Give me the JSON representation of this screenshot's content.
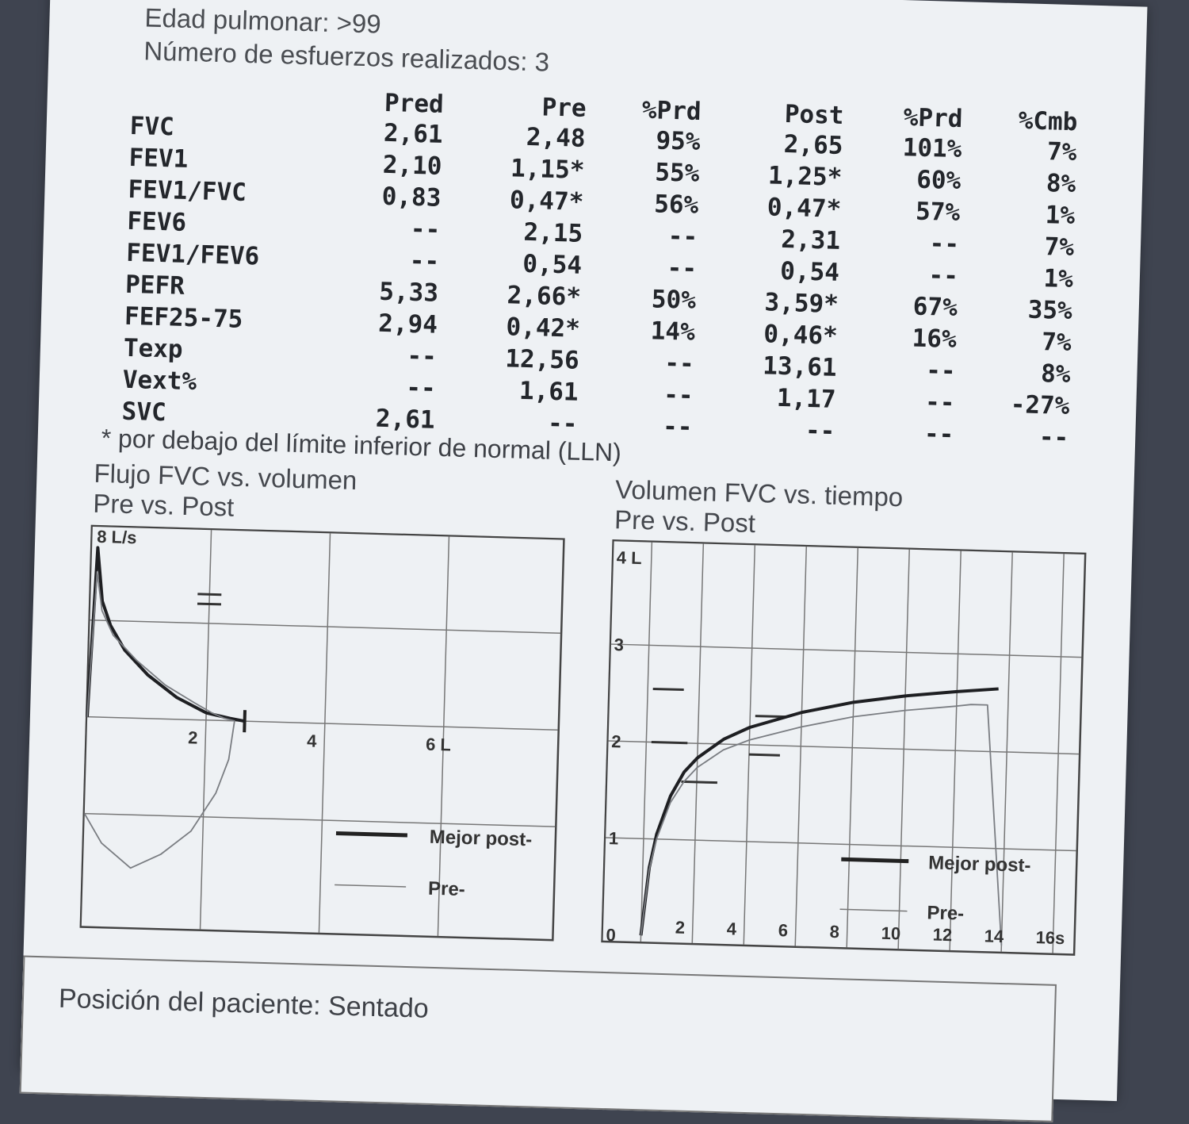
{
  "header": {
    "lung_age": "Edad pulmonar: >99",
    "efforts": "Número de esfuerzos realizados: 3"
  },
  "table": {
    "columns": [
      "Pred",
      "Pre",
      "%Prd",
      "Post",
      "%Prd",
      "%Cmb"
    ],
    "rows": [
      {
        "label": "FVC",
        "values": [
          "2,61",
          "2,48",
          "95%",
          "2,65",
          "101%",
          "7%"
        ]
      },
      {
        "label": "FEV1",
        "values": [
          "2,10",
          "1,15*",
          "55%",
          "1,25*",
          "60%",
          "8%"
        ]
      },
      {
        "label": "FEV1/FVC",
        "values": [
          "0,83",
          "0,47*",
          "56%",
          "0,47*",
          "57%",
          "1%"
        ]
      },
      {
        "label": "FEV6",
        "values": [
          "--",
          "2,15",
          "--",
          "2,31",
          "--",
          "7%"
        ]
      },
      {
        "label": "FEV1/FEV6",
        "values": [
          "--",
          "0,54",
          "--",
          "0,54",
          "--",
          "1%"
        ]
      },
      {
        "label": "PEFR",
        "values": [
          "5,33",
          "2,66*",
          "50%",
          "3,59*",
          "67%",
          "35%"
        ]
      },
      {
        "label": "FEF25-75",
        "values": [
          "2,94",
          "0,42*",
          "14%",
          "0,46*",
          "16%",
          "7%"
        ]
      },
      {
        "label": "Texp",
        "values": [
          "--",
          "12,56",
          "--",
          "13,61",
          "--",
          "8%"
        ]
      },
      {
        "label": "Vext%",
        "values": [
          "--",
          "1,61",
          "--",
          "1,17",
          "--",
          "-27%"
        ]
      },
      {
        "label": "SVC",
        "values": [
          "2,61",
          "--",
          "--",
          "--",
          "--",
          "--"
        ]
      }
    ],
    "footnote": "* por debajo del límite inferior de normal (LLN)"
  },
  "chart_data": [
    {
      "type": "line",
      "title": "Flujo FVC vs. volumen",
      "subtitle": "Pre vs. Post",
      "y_top_label": "8 L/s",
      "x_tick_labels": [
        "2",
        "4",
        "6 L"
      ],
      "series": [
        {
          "name": "Mejor post-",
          "x": [
            0.0,
            0.1,
            0.2,
            0.35,
            0.6,
            1.0,
            1.5,
            2.0,
            2.4,
            2.65
          ],
          "y": [
            0.0,
            3.5,
            2.4,
            1.9,
            1.4,
            0.9,
            0.45,
            0.15,
            0.05,
            0.0
          ]
        },
        {
          "name": "Pre-",
          "x": [
            0.0,
            0.1,
            0.2,
            0.4,
            0.8,
            1.3,
            1.8,
            2.1,
            2.3,
            2.48,
            2.4,
            2.2,
            1.8,
            1.3,
            0.8,
            0.3,
            0.0
          ],
          "y": [
            0.0,
            3.0,
            2.2,
            1.7,
            1.2,
            0.7,
            0.35,
            0.15,
            0.05,
            0.0,
            -0.8,
            -1.5,
            -2.3,
            -2.8,
            -3.1,
            -2.6,
            -2.0
          ]
        }
      ],
      "legend": [
        "Mejor post-",
        "Pre-"
      ]
    },
    {
      "type": "line",
      "title": "Volumen FVC vs. tiempo",
      "subtitle": "Pre vs. Post",
      "y_tick_labels": [
        "4 L",
        "3",
        "2",
        "1",
        "0"
      ],
      "x_tick_labels": [
        "2",
        "4",
        "6",
        "8",
        "10",
        "12",
        "14",
        "16s"
      ],
      "series": [
        {
          "name": "Mejor post-",
          "x": [
            0,
            0.25,
            0.5,
            1,
            1.5,
            2,
            3,
            4,
            6,
            8,
            10,
            12,
            13.61
          ],
          "y": [
            0,
            0.7,
            1.05,
            1.45,
            1.7,
            1.85,
            2.05,
            2.18,
            2.35,
            2.47,
            2.55,
            2.61,
            2.65
          ]
        },
        {
          "name": "Pre-",
          "x": [
            0,
            0.25,
            0.5,
            1,
            1.5,
            2,
            3,
            4,
            6,
            8,
            10,
            12,
            12.56,
            13.2,
            14
          ],
          "y": [
            0,
            0.68,
            1.0,
            1.38,
            1.6,
            1.75,
            1.94,
            2.05,
            2.2,
            2.32,
            2.4,
            2.46,
            2.48,
            2.48,
            0.0
          ]
        }
      ],
      "legend": [
        "Mejor post-",
        "Pre-"
      ]
    }
  ],
  "footer": {
    "position": "Posición del paciente: Sentado"
  }
}
